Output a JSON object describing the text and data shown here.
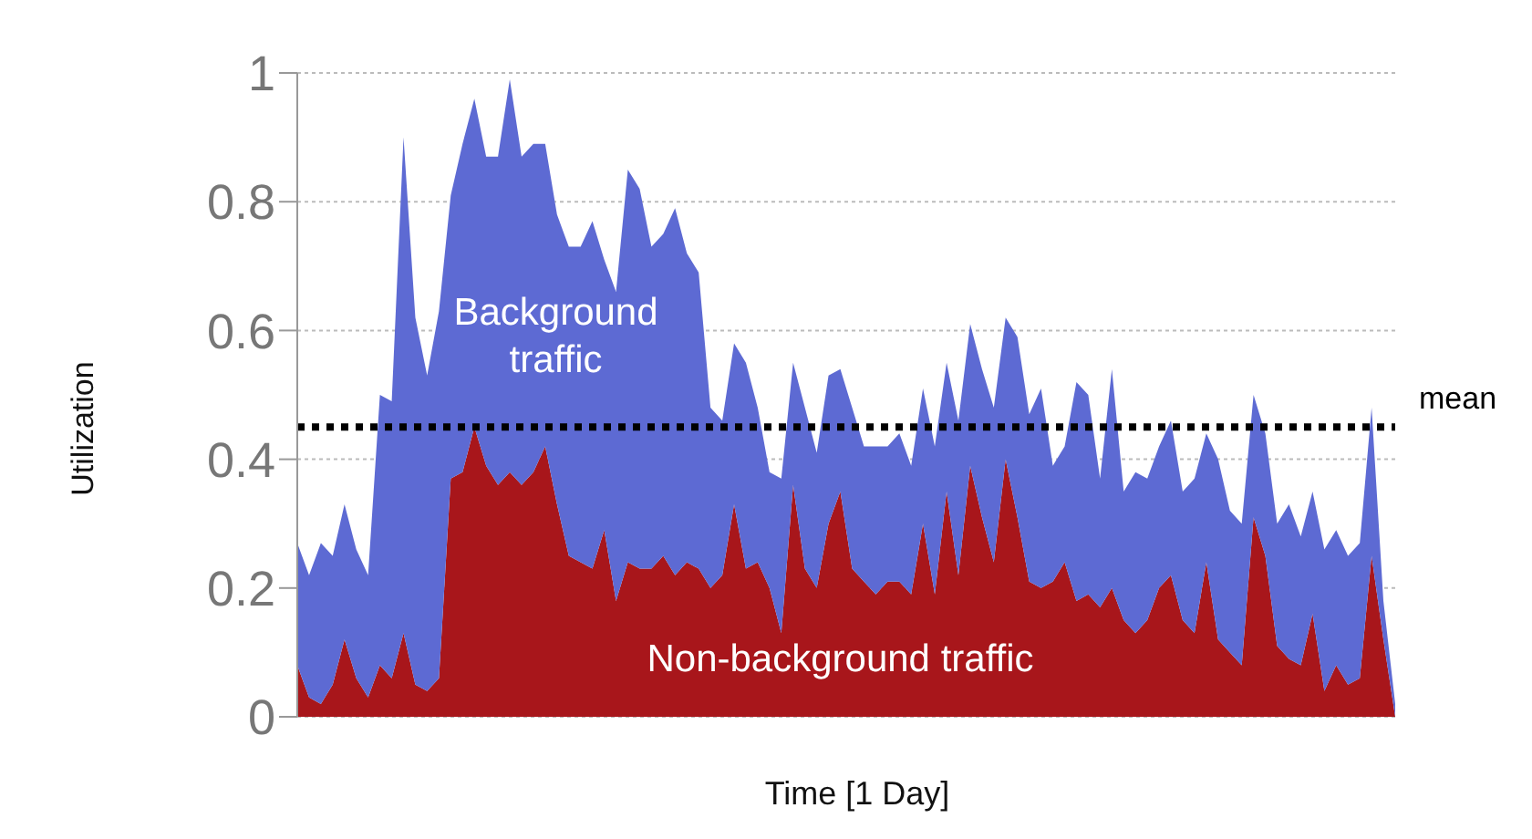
{
  "chart_data": {
    "type": "area",
    "xlabel": "Time [1 Day]",
    "ylabel": "Utilization",
    "stacked": true,
    "categories": [
      null,
      null,
      null,
      null,
      null,
      null,
      null,
      null,
      null,
      null,
      null,
      null,
      null,
      null,
      null,
      null,
      null,
      null,
      null,
      null,
      null,
      null,
      null,
      null,
      null,
      null,
      null,
      null,
      null,
      null,
      null,
      null,
      null,
      null,
      null,
      null,
      null,
      null,
      null,
      null,
      null,
      null,
      null,
      null,
      null,
      null,
      null,
      null,
      null,
      null,
      null,
      null,
      null,
      null,
      null,
      null,
      null,
      null,
      null,
      null,
      null,
      null,
      null,
      null,
      null,
      null,
      null,
      null,
      null,
      null,
      null,
      null,
      null,
      null,
      null,
      null,
      null,
      null,
      null,
      null,
      null,
      null,
      null,
      null,
      null,
      null,
      null,
      null,
      null,
      null,
      null,
      null,
      null,
      null
    ],
    "series": [
      {
        "name": "Non-background traffic",
        "color": "#a8161b",
        "values": [
          0.08,
          0.03,
          0.02,
          0.05,
          0.12,
          0.06,
          0.03,
          0.08,
          0.06,
          0.13,
          0.05,
          0.04,
          0.06,
          0.37,
          0.38,
          0.45,
          0.39,
          0.36,
          0.38,
          0.36,
          0.38,
          0.42,
          0.33,
          0.25,
          0.24,
          0.23,
          0.29,
          0.18,
          0.24,
          0.23,
          0.23,
          0.25,
          0.22,
          0.24,
          0.23,
          0.2,
          0.22,
          0.33,
          0.23,
          0.24,
          0.2,
          0.13,
          0.36,
          0.23,
          0.2,
          0.3,
          0.35,
          0.23,
          0.21,
          0.19,
          0.21,
          0.21,
          0.19,
          0.3,
          0.19,
          0.35,
          0.22,
          0.39,
          0.31,
          0.24,
          0.4,
          0.31,
          0.21,
          0.2,
          0.21,
          0.24,
          0.18,
          0.19,
          0.17,
          0.2,
          0.15,
          0.13,
          0.15,
          0.2,
          0.22,
          0.15,
          0.13,
          0.24,
          0.12,
          0.1,
          0.08,
          0.31,
          0.25,
          0.11,
          0.09,
          0.08,
          0.16,
          0.04,
          0.08,
          0.05,
          0.06,
          0.25,
          0.12,
          0
        ]
      },
      {
        "name": "Background traffic",
        "color": "#5d6ad3",
        "values": [
          0.19,
          0.19,
          0.25,
          0.2,
          0.21,
          0.2,
          0.19,
          0.42,
          0.43,
          0.77,
          0.57,
          0.49,
          0.57,
          0.44,
          0.51,
          0.51,
          0.48,
          0.51,
          0.61,
          0.51,
          0.51,
          0.47,
          0.45,
          0.48,
          0.49,
          0.54,
          0.42,
          0.48,
          0.61,
          0.59,
          0.5,
          0.5,
          0.57,
          0.48,
          0.46,
          0.28,
          0.24,
          0.25,
          0.32,
          0.24,
          0.18,
          0.24,
          0.19,
          0.25,
          0.21,
          0.23,
          0.19,
          0.25,
          0.21,
          0.23,
          0.21,
          0.23,
          0.2,
          0.21,
          0.23,
          0.2,
          0.24,
          0.22,
          0.23,
          0.24,
          0.22,
          0.28,
          0.26,
          0.31,
          0.18,
          0.18,
          0.34,
          0.31,
          0.2,
          0.34,
          0.2,
          0.25,
          0.22,
          0.22,
          0.24,
          0.2,
          0.24,
          0.2,
          0.28,
          0.22,
          0.22,
          0.19,
          0.19,
          0.19,
          0.24,
          0.2,
          0.19,
          0.22,
          0.21,
          0.2,
          0.21,
          0.23,
          0.06,
          0.02
        ]
      }
    ],
    "ylim": [
      0,
      1
    ],
    "yticks": [
      0,
      0.2,
      0.4,
      0.6,
      0.8,
      1
    ],
    "grid": "y",
    "tick_labels": "y",
    "ref_lines": [
      {
        "axis": "y",
        "value": 0.45,
        "label": "mean",
        "color": "#000000",
        "line_style": "dotted"
      }
    ]
  }
}
